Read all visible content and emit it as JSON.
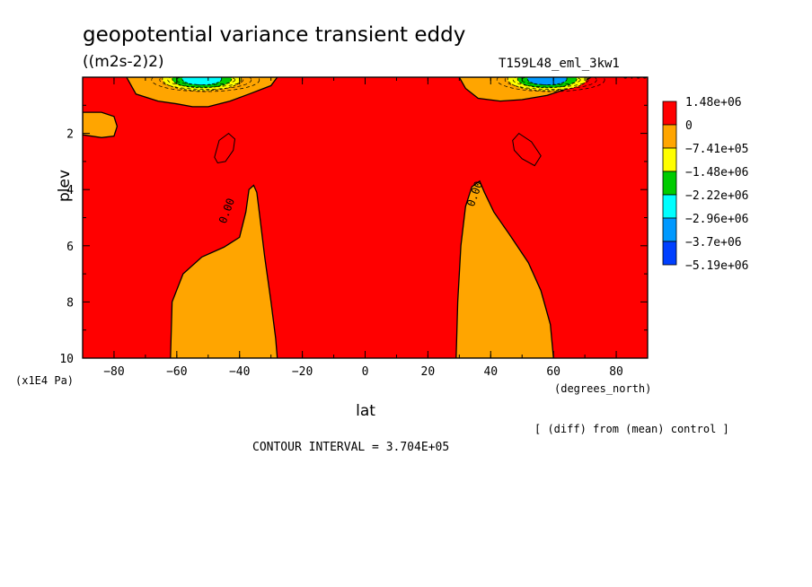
{
  "title": "geopotential variance transient eddy",
  "units": "((m2s-2)2)",
  "run_id": "T159L48_eml_3kw1",
  "note": "[ (diff) from (mean) control ]",
  "contour_interval": "CONTOUR INTERVAL = 3.704E+05",
  "chart_data": {
    "type": "heatmap",
    "xlabel": "lat",
    "xunit": "(degrees_north)",
    "ylabel": "plev",
    "yunit": "(x1E4 Pa)",
    "xlim": [
      -90,
      90
    ],
    "ylim": [
      10,
      0
    ],
    "x_ticks": [
      -80,
      -60,
      -40,
      -20,
      0,
      20,
      40,
      60,
      80
    ],
    "x_tick_labels": [
      "−80",
      "−60",
      "−40",
      "−20",
      "0",
      "20",
      "40",
      "60",
      "80"
    ],
    "y_ticks": [
      2,
      4,
      6,
      8,
      10
    ],
    "y_tick_labels": [
      "2",
      "4",
      "6",
      "8",
      "10"
    ],
    "contour_labels": [
      {
        "text": "0.00",
        "lat": 86,
        "plev": 0.05
      },
      {
        "text": "0.00",
        "lat": -43,
        "plev": 4.8
      },
      {
        "text": "0.00",
        "lat": 36,
        "plev": 4.2
      }
    ],
    "legend": [
      {
        "label": "1.48e+06",
        "color": "#ff0000"
      },
      {
        "label": "0",
        "color": "#ffa500"
      },
      {
        "label": "−7.41e+05",
        "color": "#ffff00"
      },
      {
        "label": "−1.48e+06",
        "color": "#00cc00"
      },
      {
        "label": "−2.22e+06",
        "color": "#00ffff"
      },
      {
        "label": "−2.96e+06",
        "color": "#0099ff"
      },
      {
        "label": "−3.7e+06",
        "color": "#0040ff"
      },
      {
        "label": "−5.19e+06",
        "color": null
      }
    ],
    "background_color": "#ff0000",
    "negative_region_color": "#ffa500",
    "regions": [
      {
        "name": "sh-lower-tongue",
        "points": [
          [
            -62,
            10
          ],
          [
            -61.5,
            8
          ],
          [
            -58,
            7
          ],
          [
            -52,
            6.4
          ],
          [
            -45,
            6.05
          ],
          [
            -40,
            5.7
          ],
          [
            -38,
            4.8
          ],
          [
            -37,
            4.0
          ],
          [
            -35.5,
            3.85
          ],
          [
            -34.5,
            4.1
          ],
          [
            -33.5,
            5.0
          ],
          [
            -32,
            6.4
          ],
          [
            -30,
            8.0
          ],
          [
            -28.5,
            9.3
          ],
          [
            -28,
            10
          ]
        ]
      },
      {
        "name": "nh-lower-tongue",
        "points": [
          [
            29,
            10
          ],
          [
            29.5,
            8
          ],
          [
            30.5,
            6
          ],
          [
            32,
            4.6
          ],
          [
            34,
            3.9
          ],
          [
            36.5,
            3.7
          ],
          [
            38,
            4.1
          ],
          [
            41,
            4.8
          ],
          [
            46,
            5.6
          ],
          [
            52,
            6.6
          ],
          [
            56,
            7.6
          ],
          [
            59,
            8.8
          ],
          [
            60,
            10
          ]
        ]
      },
      {
        "name": "sh-upper-lobe",
        "points": [
          [
            -76,
            0
          ],
          [
            -73,
            0.6
          ],
          [
            -66,
            0.85
          ],
          [
            -60,
            0.95
          ],
          [
            -55,
            1.05
          ],
          [
            -50,
            1.05
          ],
          [
            -43,
            0.85
          ],
          [
            -37,
            0.6
          ],
          [
            -30,
            0.3
          ],
          [
            -28,
            0
          ]
        ]
      },
      {
        "name": "nh-upper-lobe",
        "points": [
          [
            30,
            0
          ],
          [
            32,
            0.4
          ],
          [
            36,
            0.75
          ],
          [
            43,
            0.85
          ],
          [
            50,
            0.8
          ],
          [
            58,
            0.65
          ],
          [
            66,
            0.35
          ],
          [
            72,
            0
          ]
        ]
      },
      {
        "name": "sh-edge-lobe",
        "points": [
          [
            -90,
            1.25
          ],
          [
            -84,
            1.25
          ],
          [
            -80,
            1.4
          ],
          [
            -79,
            1.75
          ],
          [
            -80,
            2.1
          ],
          [
            -84,
            2.15
          ],
          [
            -90,
            2.05
          ]
        ]
      }
    ],
    "closed_contours": [
      {
        "name": "sh-small-ring",
        "points": [
          [
            -48,
            2.85
          ],
          [
            -46.5,
            2.25
          ],
          [
            -43.5,
            2.0
          ],
          [
            -41.5,
            2.2
          ],
          [
            -42,
            2.6
          ],
          [
            -44.5,
            3.0
          ],
          [
            -47,
            3.05
          ]
        ]
      },
      {
        "name": "nh-small-ring",
        "points": [
          [
            47,
            2.25
          ],
          [
            49,
            2.0
          ],
          [
            53,
            2.3
          ],
          [
            56,
            2.8
          ],
          [
            54,
            3.15
          ],
          [
            50,
            2.9
          ],
          [
            47.5,
            2.6
          ]
        ]
      }
    ],
    "eddy_bands": [
      {
        "name": "sh-upper-bands",
        "center_lat": -52,
        "count": 3,
        "colors": [
          "#ffff00",
          "#00cc00",
          "#00ffff"
        ]
      },
      {
        "name": "nh-upper-bands",
        "center_lat": 58,
        "count": 3,
        "colors": [
          "#ffff00",
          "#00cc00",
          "#0099ff"
        ]
      }
    ]
  }
}
